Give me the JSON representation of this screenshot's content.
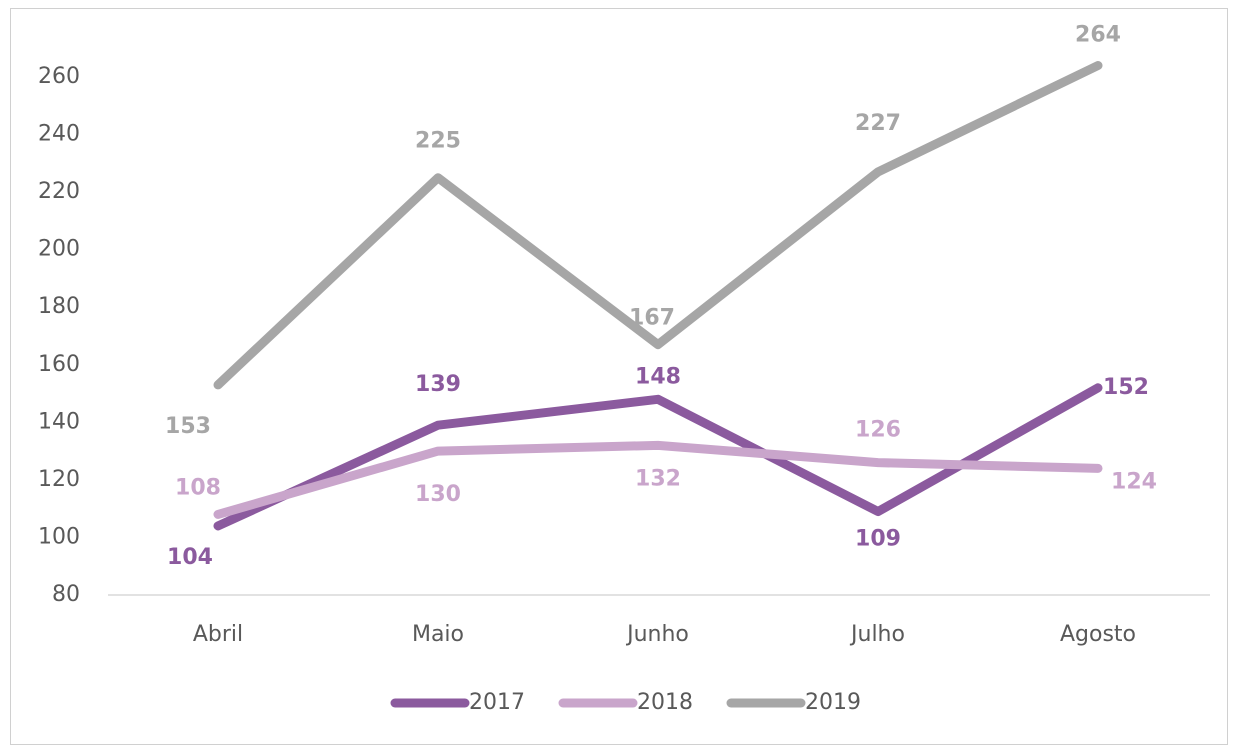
{
  "chart_data": {
    "type": "line",
    "categories": [
      "Abril",
      "Maio",
      "Junho",
      "Julho",
      "Agosto"
    ],
    "series": [
      {
        "name": "2017",
        "color": "#8b5a9e",
        "values": [
          104,
          139,
          148,
          109,
          152
        ]
      },
      {
        "name": "2018",
        "color": "#c9a5cb",
        "values": [
          108,
          130,
          132,
          126,
          124
        ]
      },
      {
        "name": "2019",
        "color": "#a6a6a6",
        "values": [
          153,
          225,
          167,
          227,
          264
        ]
      }
    ],
    "ylim": [
      80,
      260
    ],
    "yticks": [
      80,
      100,
      120,
      140,
      160,
      180,
      200,
      220,
      240,
      260
    ],
    "grid": false,
    "legend": "bottom"
  }
}
